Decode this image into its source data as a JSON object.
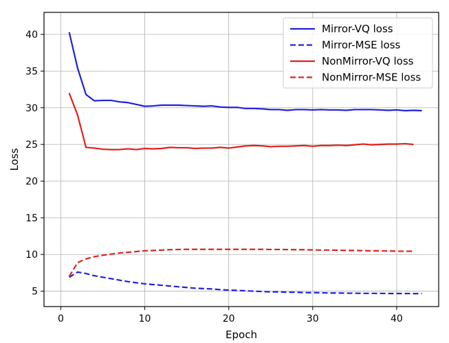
{
  "chart_data": {
    "type": "line",
    "title": "",
    "xlabel": "Epoch",
    "ylabel": "Loss",
    "xlim": [
      -2,
      45
    ],
    "ylim": [
      2.9,
      43
    ],
    "xticks": [
      0,
      10,
      20,
      30,
      40
    ],
    "yticks": [
      5,
      10,
      15,
      20,
      25,
      30,
      35,
      40
    ],
    "grid": true,
    "legend_position": "top-right",
    "series": [
      {
        "name": "Mirror-VQ loss",
        "color": "#1f1fe0",
        "style": "solid",
        "x": [
          1,
          2,
          3,
          4,
          5,
          6,
          7,
          8,
          9,
          10,
          11,
          12,
          13,
          14,
          15,
          16,
          17,
          18,
          19,
          20,
          21,
          22,
          23,
          24,
          25,
          26,
          27,
          28,
          29,
          30,
          31,
          32,
          33,
          34,
          35,
          36,
          37,
          38,
          39,
          40,
          41,
          42,
          43
        ],
        "values": [
          40.3,
          35.4,
          31.8,
          30.95,
          31.0,
          31.0,
          30.8,
          30.7,
          30.45,
          30.2,
          30.25,
          30.35,
          30.35,
          30.35,
          30.3,
          30.25,
          30.2,
          30.25,
          30.1,
          30.05,
          30.05,
          29.9,
          29.9,
          29.85,
          29.75,
          29.75,
          29.65,
          29.75,
          29.75,
          29.7,
          29.75,
          29.7,
          29.7,
          29.65,
          29.75,
          29.75,
          29.75,
          29.7,
          29.65,
          29.7,
          29.6,
          29.65,
          29.6
        ]
      },
      {
        "name": "Mirror-MSE loss",
        "color": "#1f1fe0",
        "style": "dashed",
        "x": [
          1,
          2,
          3,
          4,
          5,
          6,
          7,
          8,
          9,
          10,
          11,
          12,
          13,
          14,
          15,
          16,
          17,
          18,
          19,
          20,
          21,
          22,
          23,
          24,
          25,
          26,
          27,
          28,
          29,
          30,
          31,
          32,
          33,
          34,
          35,
          36,
          37,
          38,
          39,
          40,
          41,
          42,
          43
        ],
        "values": [
          6.9,
          7.6,
          7.4,
          7.1,
          6.9,
          6.7,
          6.5,
          6.3,
          6.15,
          6.0,
          5.9,
          5.8,
          5.7,
          5.6,
          5.5,
          5.4,
          5.35,
          5.3,
          5.2,
          5.15,
          5.1,
          5.05,
          5.0,
          4.95,
          4.9,
          4.9,
          4.85,
          4.85,
          4.8,
          4.8,
          4.78,
          4.75,
          4.75,
          4.72,
          4.72,
          4.7,
          4.7,
          4.7,
          4.68,
          4.68,
          4.68,
          4.67,
          4.66
        ]
      },
      {
        "name": "NonMirror-VQ loss",
        "color": "#e0201a",
        "style": "solid",
        "x": [
          1,
          2,
          3,
          4,
          5,
          6,
          7,
          8,
          9,
          10,
          11,
          12,
          13,
          14,
          15,
          16,
          17,
          18,
          19,
          20,
          21,
          22,
          23,
          24,
          25,
          26,
          27,
          28,
          29,
          30,
          31,
          32,
          33,
          34,
          35,
          36,
          37,
          38,
          39,
          40,
          41,
          42
        ],
        "values": [
          32.0,
          29.0,
          24.6,
          24.5,
          24.35,
          24.3,
          24.3,
          24.4,
          24.3,
          24.45,
          24.4,
          24.45,
          24.6,
          24.55,
          24.55,
          24.45,
          24.5,
          24.5,
          24.6,
          24.5,
          24.65,
          24.8,
          24.85,
          24.8,
          24.7,
          24.75,
          24.75,
          24.8,
          24.85,
          24.75,
          24.85,
          24.85,
          24.9,
          24.85,
          24.95,
          25.05,
          24.95,
          25.0,
          25.05,
          25.05,
          25.1,
          25.0
        ]
      },
      {
        "name": "NonMirror-MSE loss",
        "color": "#e0201a",
        "style": "dashed",
        "x": [
          1,
          2,
          3,
          4,
          5,
          6,
          7,
          8,
          9,
          10,
          11,
          12,
          13,
          14,
          15,
          16,
          17,
          18,
          19,
          20,
          21,
          22,
          23,
          24,
          25,
          26,
          27,
          28,
          29,
          30,
          31,
          32,
          33,
          34,
          35,
          36,
          37,
          38,
          39,
          40,
          41,
          42
        ],
        "values": [
          7.0,
          8.9,
          9.4,
          9.7,
          9.9,
          10.05,
          10.2,
          10.3,
          10.4,
          10.5,
          10.55,
          10.6,
          10.65,
          10.68,
          10.7,
          10.7,
          10.7,
          10.7,
          10.7,
          10.7,
          10.7,
          10.7,
          10.7,
          10.7,
          10.68,
          10.68,
          10.67,
          10.65,
          10.65,
          10.62,
          10.6,
          10.6,
          10.58,
          10.55,
          10.55,
          10.52,
          10.5,
          10.5,
          10.48,
          10.45,
          10.45,
          10.44
        ]
      }
    ]
  }
}
